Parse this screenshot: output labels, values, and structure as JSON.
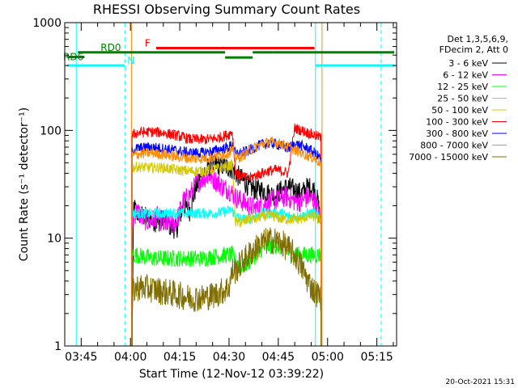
{
  "chart_data": {
    "type": "line",
    "title": "RHESSI Observing Summary Count Rates",
    "xlabel": "Start Time (12-Nov-12 03:39:22)",
    "ylabel": "Count Rate (s⁻¹ detector⁻¹)",
    "yscale": "log",
    "ylim": [
      1,
      1000
    ],
    "xlim_minutes": [
      220,
      321
    ],
    "x_ticks": [
      {
        "label": "03:45",
        "min": 225
      },
      {
        "label": "04:00",
        "min": 240
      },
      {
        "label": "04:15",
        "min": 255
      },
      {
        "label": "04:30",
        "min": 270
      },
      {
        "label": "04:45",
        "min": 285
      },
      {
        "label": "05:00",
        "min": 300
      },
      {
        "label": "05:15",
        "min": 315
      }
    ],
    "y_ticks": [
      {
        "label": "1",
        "value": 1
      },
      {
        "label": "10",
        "value": 10
      },
      {
        "label": "100",
        "value": 100
      },
      {
        "label": "1000",
        "value": 1000
      }
    ],
    "legend_header": [
      "Det 1,3,5,6,9,",
      "FDecim 2, Att 0"
    ],
    "series": [
      {
        "name": "3 - 6 keV",
        "color": "#000000",
        "x": [
          240.5,
          241,
          242,
          244,
          246,
          248,
          250,
          252,
          254,
          256,
          258,
          260,
          262,
          264,
          266,
          268,
          270,
          271,
          272,
          274,
          276,
          278,
          280,
          282,
          284,
          286,
          288,
          290,
          292,
          294,
          296,
          297,
          298
        ],
        "y": [
          1.3,
          20,
          17,
          16,
          15,
          14,
          15,
          13,
          12,
          20,
          18,
          30,
          40,
          46,
          48,
          47,
          45,
          44,
          40,
          35,
          30,
          28,
          28,
          26,
          25,
          28,
          30,
          28,
          26,
          30,
          28,
          22,
          14
        ]
      },
      {
        "name": "6 - 12 keV",
        "color": "#ff00ff",
        "x": [
          240.5,
          241,
          242,
          244,
          246,
          248,
          250,
          252,
          254,
          256,
          258,
          260,
          262,
          264,
          266,
          268,
          270,
          271,
          272,
          274,
          276,
          278,
          280,
          282,
          284,
          286,
          288,
          290,
          292,
          294,
          296,
          297,
          298
        ],
        "y": [
          12,
          16,
          18,
          15,
          14,
          16,
          14,
          13,
          14,
          22,
          25,
          32,
          36,
          38,
          34,
          30,
          28,
          26,
          24,
          22,
          20,
          19,
          20,
          22,
          22,
          24,
          24,
          22,
          22,
          24,
          22,
          18,
          14
        ]
      },
      {
        "name": "12 - 25 keV",
        "color": "#00ff00",
        "x": [
          240.5,
          242,
          246,
          250,
          254,
          258,
          262,
          266,
          270,
          271,
          272,
          274,
          276,
          278,
          280,
          282,
          284,
          286,
          288,
          290,
          292,
          294,
          296,
          297,
          298
        ],
        "y": [
          7,
          7,
          6.5,
          6.5,
          6.5,
          6.5,
          6.5,
          6.8,
          7,
          7,
          6,
          5.5,
          6,
          7,
          8,
          8.5,
          8.5,
          8.2,
          7.5,
          7,
          7,
          7,
          7,
          7,
          7
        ]
      },
      {
        "name": "25 - 50 keV",
        "color": "#00ffff",
        "x": [
          240.5,
          242,
          246,
          250,
          254,
          258,
          262,
          266,
          270,
          271,
          272,
          274,
          276,
          278,
          280,
          282,
          284,
          286,
          288,
          290,
          292,
          294,
          296,
          297,
          298
        ],
        "y": [
          17,
          17,
          17,
          17,
          17,
          17,
          17,
          17,
          18,
          18,
          16,
          15,
          15,
          16,
          17,
          17,
          17,
          17,
          16,
          16,
          16,
          17,
          17,
          16,
          16
        ]
      },
      {
        "name": "50 - 100 keV",
        "color": "#d4c800",
        "x": [
          240.5,
          242,
          246,
          250,
          254,
          258,
          262,
          266,
          270,
          271,
          272,
          274,
          276,
          278,
          280,
          282,
          284,
          286,
          288,
          290,
          292,
          294,
          296,
          297,
          298
        ],
        "y": [
          45,
          46,
          45,
          45,
          43,
          42,
          42,
          44,
          47,
          48,
          14,
          14,
          15,
          15,
          16,
          16,
          16,
          15,
          15,
          15,
          15,
          16,
          16,
          15,
          15
        ]
      },
      {
        "name": "100 - 300 keV",
        "color": "#ff0000",
        "x": [
          240.5,
          242,
          246,
          250,
          254,
          258,
          262,
          266,
          270,
          271,
          272,
          274,
          276,
          278,
          280,
          282,
          284,
          286,
          288,
          290,
          292,
          294,
          296,
          297,
          298
        ],
        "y": [
          90,
          95,
          97,
          95,
          90,
          83,
          82,
          84,
          92,
          98,
          40,
          37,
          36,
          38,
          40,
          42,
          43,
          42,
          40,
          105,
          100,
          95,
          90,
          88,
          85
        ]
      },
      {
        "name": "300 - 800 keV",
        "color": "#0000ff",
        "x": [
          240.5,
          242,
          246,
          250,
          254,
          258,
          262,
          266,
          270,
          271,
          272,
          274,
          276,
          278,
          280,
          282,
          284,
          286,
          288,
          290,
          292,
          294,
          296,
          297,
          298
        ],
        "y": [
          65,
          68,
          70,
          68,
          65,
          62,
          62,
          65,
          70,
          75,
          60,
          62,
          65,
          70,
          74,
          76,
          75,
          72,
          68,
          75,
          72,
          68,
          62,
          58,
          55
        ]
      },
      {
        "name": "800 - 7000 keV",
        "color": "#ff8c00",
        "x": [
          240.5,
          242,
          246,
          250,
          254,
          258,
          262,
          266,
          270,
          271,
          272,
          274,
          276,
          278,
          280,
          282,
          284,
          286,
          288,
          290,
          292,
          294,
          296,
          297,
          298
        ],
        "y": [
          58,
          60,
          62,
          60,
          57,
          55,
          55,
          57,
          62,
          66,
          55,
          58,
          64,
          70,
          75,
          78,
          78,
          75,
          70,
          65,
          62,
          58,
          55,
          52,
          50
        ]
      },
      {
        "name": "7000 - 15000 keV",
        "color": "#806e00",
        "x": [
          240.5,
          242,
          246,
          250,
          254,
          258,
          262,
          266,
          270,
          271,
          272,
          274,
          276,
          278,
          280,
          282,
          284,
          286,
          288,
          290,
          292,
          294,
          296,
          297,
          298
        ],
        "y": [
          3.2,
          3.5,
          3.4,
          3.2,
          3.0,
          2.8,
          2.8,
          3.0,
          3.5,
          5,
          5,
          6,
          7,
          8,
          9,
          9.5,
          9.5,
          9,
          8,
          7,
          5.5,
          4,
          3.2,
          3,
          2.8
        ]
      }
    ],
    "vertical_markers": [
      {
        "min": 223.5,
        "color": "#00ffff",
        "style": "solid"
      },
      {
        "min": 238.3,
        "color": "#00ffff",
        "style": "dashed"
      },
      {
        "min": 296.3,
        "color": "#00ffff",
        "style": "solid"
      },
      {
        "min": 316.3,
        "color": "#00ffff",
        "style": "dashed"
      },
      {
        "min": 240.3,
        "color": "#ff8c00",
        "style": "solid"
      },
      {
        "min": 298.3,
        "color": "#ff8c00",
        "style": "solid"
      }
    ],
    "flag_bars": [
      {
        "label": "N",
        "color": "#00ffff",
        "x0": 220.8,
        "x1": 238.3,
        "y": 400
      },
      {
        "label": "",
        "color": "#00ffff",
        "x0": 296.3,
        "x1": 320.3,
        "y": 400
      },
      {
        "label": "F",
        "color": "#ff0000",
        "x0": 247.8,
        "x1": 296.0,
        "y": 580
      },
      {
        "label": "RD0",
        "color": "#008000",
        "x0": 224.0,
        "x1": 268.8,
        "y": 530
      },
      {
        "label": "",
        "color": "#008000",
        "x0": 268.8,
        "x1": 277.2,
        "y": 475
      },
      {
        "label": "",
        "color": "#008000",
        "x0": 277.2,
        "x1": 283.7,
        "y": 530
      },
      {
        "label": "",
        "color": "#008000",
        "x0": 283.7,
        "x1": 320.3,
        "y": 530
      },
      {
        "label": "RD6",
        "color": "#008000",
        "x0": 221.0,
        "x1": 226.0,
        "y": 480
      }
    ],
    "footer_timestamp": "20-Oct-2021 15:31"
  }
}
